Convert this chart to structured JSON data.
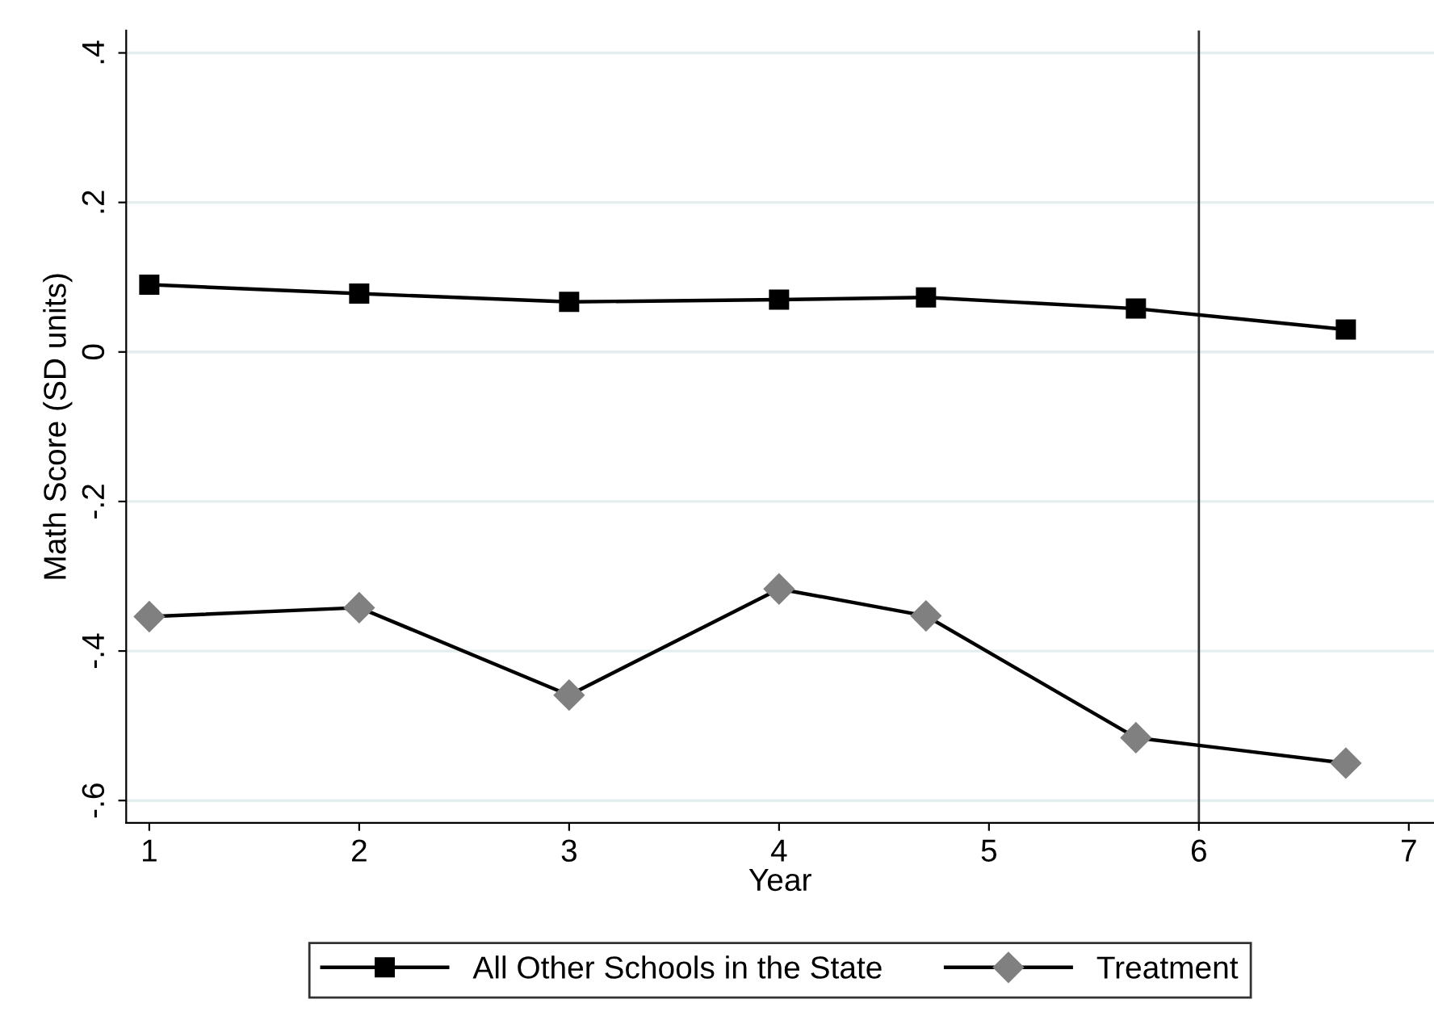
{
  "chart_data": {
    "type": "line",
    "xlabel": "Year",
    "ylabel": "Math Score (SD units)",
    "xlim": [
      0.89,
      7.12
    ],
    "xticks": [
      1,
      2,
      3,
      4,
      5,
      6,
      7
    ],
    "ylim": [
      -0.63,
      0.43
    ],
    "yticks": [
      {
        "value": -0.6,
        "label": "-.6"
      },
      {
        "value": -0.4,
        "label": "-.4"
      },
      {
        "value": -0.2,
        "label": "-.2"
      },
      0,
      {
        "value": 0.2,
        "label": ".2"
      },
      {
        "value": 0.4,
        "label": ".4"
      }
    ],
    "grid": "y",
    "legend": "bottom",
    "series": [
      {
        "name": "All Other Schools in the State",
        "color": "#000000",
        "marker": "square",
        "x": [
          1,
          2,
          3,
          4,
          4.7,
          5.7,
          6.7
        ],
        "values": [
          0.09,
          0.078,
          0.067,
          0.07,
          0.073,
          0.058,
          0.03
        ]
      },
      {
        "name": "Treatment",
        "color": "#808080",
        "marker": "diamond",
        "x": [
          1,
          2,
          3,
          4,
          4.7,
          5.7,
          6.7
        ],
        "values": [
          -0.354,
          -0.342,
          -0.459,
          -0.317,
          -0.353,
          -0.516,
          -0.55
        ]
      }
    ],
    "ref_lines": [
      {
        "axis": "x",
        "value": 6,
        "label": null,
        "color": "#333333"
      }
    ]
  }
}
